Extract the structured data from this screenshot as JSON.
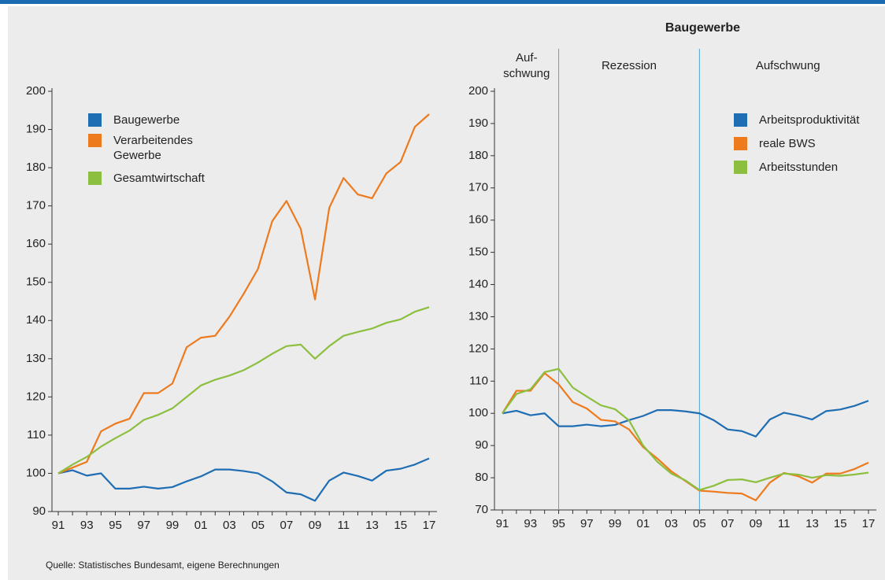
{
  "chart_data": [
    {
      "type": "line",
      "categories": [
        "91",
        null,
        "93",
        null,
        "95",
        null,
        "97",
        null,
        "99",
        null,
        "01",
        null,
        "03",
        null,
        "05",
        null,
        "07",
        null,
        "09",
        null,
        "11",
        null,
        "13",
        null,
        "15",
        null,
        "17"
      ],
      "ylim": [
        90,
        200
      ],
      "yticks": [
        90,
        100,
        110,
        120,
        130,
        140,
        150,
        160,
        170,
        180,
        190,
        200
      ],
      "series": [
        {
          "name": "Baugewerbe",
          "color": "#1f6db3",
          "values": [
            100,
            100.8,
            99.4,
            100,
            96,
            96,
            96.5,
            96,
            96.4,
            97.9,
            99.2,
            101,
            101,
            100.6,
            100,
            97.9,
            95,
            94.5,
            92.8,
            98.1,
            100.2,
            99.3,
            98.1,
            100.7,
            101.2,
            102.3,
            103.9
          ]
        },
        {
          "name": "Verarbeitendes Gewerbe",
          "color": "#ee7a1e",
          "values": [
            100,
            101.5,
            103,
            111,
            113,
            114.3,
            121,
            121,
            123.5,
            133,
            135.5,
            136,
            141,
            147,
            153.5,
            166,
            171.3,
            164,
            145.5,
            169.5,
            177.3,
            173,
            172,
            178.5,
            181.5,
            190.7,
            194
          ]
        },
        {
          "name": "Gesamtwirtschaft",
          "color": "#8cbf3f",
          "values": [
            100,
            102.3,
            104.3,
            107,
            109.2,
            111.2,
            114,
            115.3,
            117,
            120,
            123,
            124.5,
            125.6,
            127,
            129,
            131.3,
            133.3,
            133.7,
            130,
            133.3,
            136,
            137,
            137.9,
            139.4,
            140.3,
            142.3,
            143.5
          ]
        }
      ]
    },
    {
      "type": "line",
      "title": "Baugewerbe",
      "categories": [
        "91",
        null,
        "93",
        null,
        "95",
        null,
        "97",
        null,
        "99",
        null,
        "01",
        null,
        "03",
        null,
        "05",
        null,
        "07",
        null,
        "09",
        null,
        "11",
        null,
        "13",
        null,
        "15",
        null,
        "17"
      ],
      "ylim": [
        70,
        200
      ],
      "yticks": [
        70,
        80,
        90,
        100,
        110,
        120,
        130,
        140,
        150,
        160,
        170,
        180,
        190,
        200
      ],
      "phase_boundaries": [
        "95",
        "05"
      ],
      "phases": [
        [
          "Auf-",
          "schwung"
        ],
        [
          "Rezession"
        ],
        [
          "Aufschwung"
        ]
      ],
      "series": [
        {
          "name": "Arbeitsproduktivität",
          "color": "#1f6db3",
          "values": [
            100,
            100.8,
            99.4,
            100,
            96,
            96,
            96.5,
            96,
            96.4,
            97.9,
            99.2,
            101,
            101,
            100.6,
            100,
            97.9,
            95,
            94.5,
            92.8,
            98.1,
            100.2,
            99.3,
            98.1,
            100.7,
            101.2,
            102.3,
            103.9
          ]
        },
        {
          "name": "reale BWS",
          "color": "#ee7a1e",
          "values": [
            100,
            107,
            107,
            112.5,
            109,
            103.5,
            101.5,
            98,
            97.5,
            95,
            89.5,
            86,
            82,
            79,
            76,
            75.7,
            75.3,
            75.1,
            73,
            78.5,
            81.5,
            80.5,
            78.5,
            81.3,
            81.3,
            82.7,
            84.7
          ]
        },
        {
          "name": "Arbeitsstunden",
          "color": "#8cbf3f",
          "values": [
            100,
            106,
            107.5,
            112.8,
            113.8,
            108,
            105.2,
            102.5,
            101.3,
            97.8,
            90,
            85,
            81.3,
            79.2,
            76.2,
            77.5,
            79.3,
            79.5,
            78.6,
            80,
            81.3,
            81,
            80,
            80.8,
            80.6,
            81,
            81.6
          ]
        }
      ]
    }
  ],
  "source": "Quelle: Statistisches Bundesamt, eigene Berechnungen"
}
